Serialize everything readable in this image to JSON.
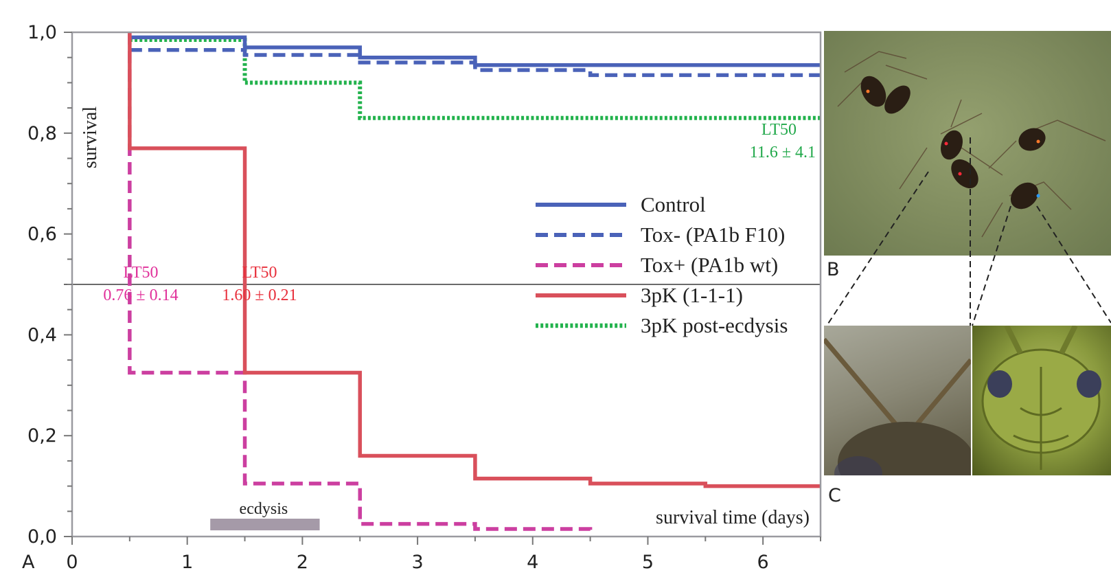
{
  "chart_data": {
    "type": "line",
    "step": true,
    "ylabel": "survival",
    "xlabel": "survival time (days)",
    "xlim": [
      0,
      6.5
    ],
    "ylim": [
      0,
      1.0
    ],
    "xticks": [
      0,
      1,
      2,
      3,
      4,
      5,
      6
    ],
    "yticks": [
      "0,0",
      "0,2",
      "0,4",
      "0,6",
      "0,8",
      "1,0"
    ],
    "ytick_values": [
      0,
      0.2,
      0.4,
      0.6,
      0.8,
      1.0
    ],
    "reference_line_y": 0.5,
    "legend_position": "center-right",
    "series": [
      {
        "name": "Control",
        "style": "solid",
        "color": "#4a62b8",
        "points": [
          [
            0.5,
            0.99
          ],
          [
            1.5,
            0.97
          ],
          [
            2.5,
            0.95
          ],
          [
            3.5,
            0.935
          ],
          [
            6.5,
            0.935
          ]
        ]
      },
      {
        "name": "Tox- (PA1b F10)",
        "style": "dashed",
        "color": "#4a62b8",
        "points": [
          [
            0.5,
            0.965
          ],
          [
            1.5,
            0.955
          ],
          [
            2.5,
            0.94
          ],
          [
            3.5,
            0.925
          ],
          [
            4.5,
            0.915
          ],
          [
            6.5,
            0.915
          ]
        ]
      },
      {
        "name": "Tox+ (PA1b wt)",
        "style": "dashed",
        "color": "#cc3fa0",
        "points": [
          [
            0.5,
            1.0
          ],
          [
            0.5,
            0.325
          ],
          [
            1.5,
            0.325
          ],
          [
            1.5,
            0.105
          ],
          [
            2.5,
            0.105
          ],
          [
            2.5,
            0.025
          ],
          [
            3.5,
            0.025
          ],
          [
            3.5,
            0.015
          ],
          [
            4.5,
            0.015
          ],
          [
            4.5,
            0.0
          ]
        ]
      },
      {
        "name": "3pK (1-1-1)",
        "style": "solid",
        "color": "#d9505b",
        "points": [
          [
            0.5,
            1.0
          ],
          [
            0.5,
            0.77
          ],
          [
            1.5,
            0.77
          ],
          [
            1.5,
            0.325
          ],
          [
            2.5,
            0.325
          ],
          [
            2.5,
            0.16
          ],
          [
            3.5,
            0.16
          ],
          [
            3.5,
            0.115
          ],
          [
            4.5,
            0.115
          ],
          [
            4.5,
            0.105
          ],
          [
            5.5,
            0.105
          ],
          [
            5.5,
            0.1
          ],
          [
            6.5,
            0.1
          ]
        ]
      },
      {
        "name": "3pK post-ecdysis",
        "style": "dotted",
        "color": "#22b24c",
        "points": [
          [
            0.5,
            0.985
          ],
          [
            1.5,
            0.985
          ],
          [
            1.5,
            0.9
          ],
          [
            2.5,
            0.9
          ],
          [
            2.5,
            0.83
          ],
          [
            6.5,
            0.83
          ]
        ]
      }
    ],
    "annotations": [
      {
        "label": "LT50",
        "value": "0.76 ± 0.14",
        "color": "#e0309a",
        "x": 0.6,
        "y": 0.5
      },
      {
        "label": "LT50",
        "value": "1.60 ± 0.21",
        "color": "#e8303c",
        "x": 1.65,
        "y": 0.5
      },
      {
        "label": "LT50",
        "value": "11.6 ± 4.1",
        "color": "#21a84a",
        "x": 6.0,
        "y": 0.83
      }
    ],
    "ecdysis": {
      "label": "ecdysis",
      "x_start": 1.2,
      "x_end": 2.15,
      "color": "#a59aa8"
    }
  },
  "panels": {
    "a": "A",
    "b": "B",
    "c": "C"
  }
}
